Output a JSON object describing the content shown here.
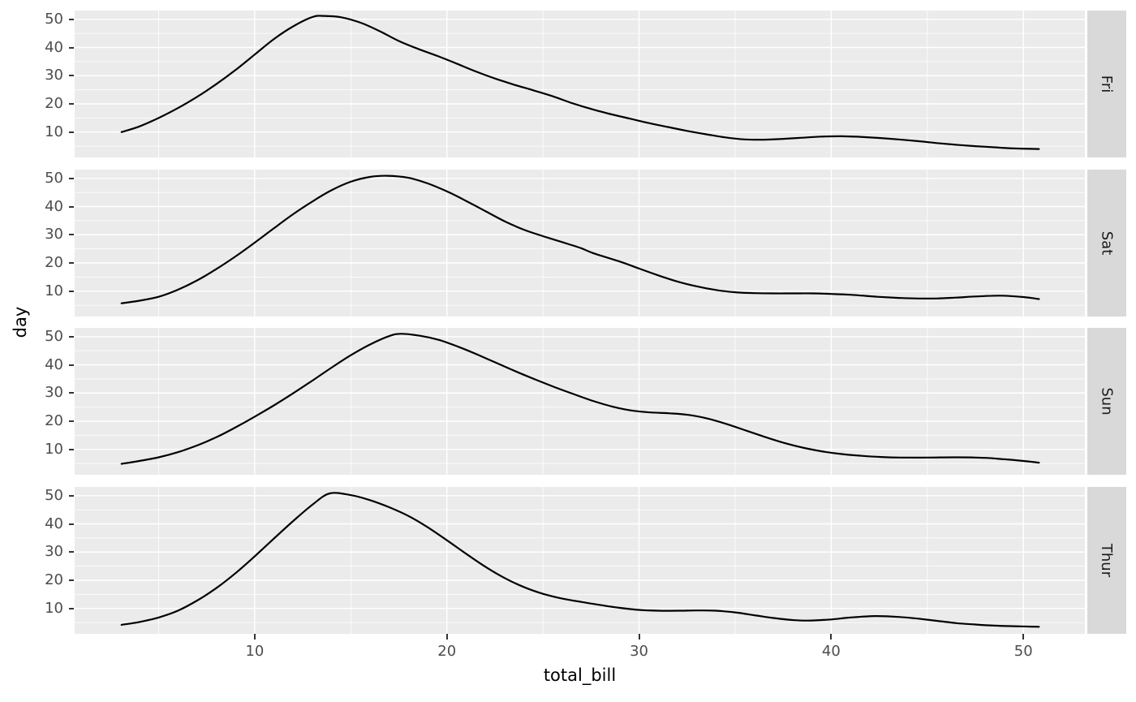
{
  "chart_data": {
    "type": "line",
    "subtype": "faceted-density",
    "title": "",
    "xlabel": "total_bill",
    "ylabel": "day",
    "facet_variable": "day",
    "facet_strip_side": "right",
    "grid": true,
    "legend": "none",
    "xlim": [
      0.63,
      53.2
    ],
    "ylim": [
      1.0,
      53.1
    ],
    "x_ticks": [
      10,
      20,
      30,
      40,
      50
    ],
    "y_ticks": [
      10,
      20,
      30,
      40,
      50
    ],
    "x_minor_ticks": [
      5,
      15,
      25,
      35,
      45
    ],
    "y_minor_ticks": [
      5,
      15,
      25,
      35,
      45
    ],
    "series": [
      {
        "name": "Fri",
        "points": [
          [
            3.07,
            10
          ],
          [
            4,
            12
          ],
          [
            5,
            15
          ],
          [
            6,
            18.5
          ],
          [
            7,
            22.5
          ],
          [
            8,
            27
          ],
          [
            9,
            32
          ],
          [
            10,
            37.5
          ],
          [
            11,
            43
          ],
          [
            12,
            47.5
          ],
          [
            13,
            50.8
          ],
          [
            13.6,
            51.2
          ],
          [
            14.5,
            50.7
          ],
          [
            15.5,
            48.8
          ],
          [
            16.5,
            45.8
          ],
          [
            17.5,
            42.3
          ],
          [
            18.5,
            39.5
          ],
          [
            19.5,
            37
          ],
          [
            20.5,
            34.3
          ],
          [
            21.5,
            31.5
          ],
          [
            22.5,
            29
          ],
          [
            23.5,
            26.8
          ],
          [
            24.5,
            24.8
          ],
          [
            25.5,
            22.7
          ],
          [
            26.5,
            20.3
          ],
          [
            27.5,
            18.2
          ],
          [
            28.5,
            16.4
          ],
          [
            29.5,
            14.8
          ],
          [
            30.5,
            13.2
          ],
          [
            31.5,
            11.8
          ],
          [
            32.5,
            10.4
          ],
          [
            33.5,
            9.2
          ],
          [
            34.5,
            8.1
          ],
          [
            35.5,
            7.4
          ],
          [
            36.5,
            7.3
          ],
          [
            37.5,
            7.6
          ],
          [
            38.5,
            8
          ],
          [
            39.5,
            8.4
          ],
          [
            40.5,
            8.5
          ],
          [
            41.5,
            8.3
          ],
          [
            42.5,
            7.9
          ],
          [
            43.5,
            7.4
          ],
          [
            44.5,
            6.8
          ],
          [
            45.5,
            6.1
          ],
          [
            46.5,
            5.5
          ],
          [
            47.5,
            5
          ],
          [
            48.5,
            4.6
          ],
          [
            49.5,
            4.2
          ],
          [
            50.81,
            4
          ]
        ]
      },
      {
        "name": "Sat",
        "points": [
          [
            3.07,
            5.7
          ],
          [
            4,
            6.6
          ],
          [
            5,
            8
          ],
          [
            6,
            10.5
          ],
          [
            7,
            13.8
          ],
          [
            8,
            17.8
          ],
          [
            9,
            22.3
          ],
          [
            10,
            27.2
          ],
          [
            11,
            32.3
          ],
          [
            12,
            37.3
          ],
          [
            13,
            41.8
          ],
          [
            14,
            45.8
          ],
          [
            15,
            48.8
          ],
          [
            16,
            50.5
          ],
          [
            16.9,
            50.9
          ],
          [
            18,
            50.2
          ],
          [
            19,
            48.2
          ],
          [
            20,
            45.4
          ],
          [
            21,
            42
          ],
          [
            22,
            38.4
          ],
          [
            23,
            34.8
          ],
          [
            24,
            31.8
          ],
          [
            25,
            29.5
          ],
          [
            26,
            27.4
          ],
          [
            27,
            25.2
          ],
          [
            27.6,
            23.5
          ],
          [
            29,
            20.5
          ],
          [
            30,
            18
          ],
          [
            31,
            15.6
          ],
          [
            32,
            13.4
          ],
          [
            33,
            11.7
          ],
          [
            34,
            10.4
          ],
          [
            35,
            9.6
          ],
          [
            36,
            9.3
          ],
          [
            37,
            9.2
          ],
          [
            38,
            9.2
          ],
          [
            39,
            9.2
          ],
          [
            40,
            9
          ],
          [
            41,
            8.7
          ],
          [
            42.4,
            8
          ],
          [
            43.5,
            7.6
          ],
          [
            44.5,
            7.4
          ],
          [
            45.5,
            7.4
          ],
          [
            46.5,
            7.7
          ],
          [
            47.5,
            8.1
          ],
          [
            48.8,
            8.4
          ],
          [
            50,
            7.9
          ],
          [
            50.81,
            7.2
          ]
        ]
      },
      {
        "name": "Sun",
        "points": [
          [
            3.07,
            4.9
          ],
          [
            4,
            5.9
          ],
          [
            5,
            7.2
          ],
          [
            6,
            9
          ],
          [
            7,
            11.4
          ],
          [
            8,
            14.3
          ],
          [
            9,
            17.8
          ],
          [
            10,
            21.6
          ],
          [
            11,
            25.6
          ],
          [
            12,
            29.9
          ],
          [
            13,
            34.4
          ],
          [
            14,
            39
          ],
          [
            15,
            43.4
          ],
          [
            16,
            47.2
          ],
          [
            17,
            50.2
          ],
          [
            17.6,
            51
          ],
          [
            18.6,
            50.3
          ],
          [
            19.6,
            48.8
          ],
          [
            20.6,
            46.4
          ],
          [
            21.6,
            43.6
          ],
          [
            22.6,
            40.6
          ],
          [
            23.6,
            37.6
          ],
          [
            24.6,
            34.8
          ],
          [
            25.6,
            32.1
          ],
          [
            26.6,
            29.6
          ],
          [
            27.6,
            27.2
          ],
          [
            28.6,
            25.2
          ],
          [
            29.6,
            23.8
          ],
          [
            30.6,
            23.1
          ],
          [
            31.6,
            22.8
          ],
          [
            32.6,
            22.2
          ],
          [
            33.6,
            20.9
          ],
          [
            34.6,
            18.9
          ],
          [
            35.6,
            16.6
          ],
          [
            36.6,
            14.3
          ],
          [
            37.6,
            12.2
          ],
          [
            38.6,
            10.5
          ],
          [
            39.6,
            9.2
          ],
          [
            40.6,
            8.3
          ],
          [
            41.6,
            7.7
          ],
          [
            42.6,
            7.3
          ],
          [
            43.6,
            7.1
          ],
          [
            45,
            7.1
          ],
          [
            46.5,
            7.2
          ],
          [
            48,
            7
          ],
          [
            49,
            6.5
          ],
          [
            50,
            5.9
          ],
          [
            50.81,
            5.3
          ]
        ]
      },
      {
        "name": "Thur",
        "points": [
          [
            3.07,
            4.2
          ],
          [
            4,
            5.2
          ],
          [
            5,
            6.8
          ],
          [
            6,
            9.2
          ],
          [
            7,
            12.8
          ],
          [
            8,
            17.2
          ],
          [
            9,
            22.5
          ],
          [
            10,
            28.5
          ],
          [
            11,
            34.8
          ],
          [
            12,
            41
          ],
          [
            13,
            46.8
          ],
          [
            13.9,
            50.8
          ],
          [
            15,
            50.2
          ],
          [
            16,
            48.4
          ],
          [
            17,
            45.9
          ],
          [
            18,
            42.8
          ],
          [
            19,
            38.8
          ],
          [
            20,
            34.2
          ],
          [
            21,
            29.4
          ],
          [
            22,
            24.8
          ],
          [
            23,
            20.8
          ],
          [
            24,
            17.6
          ],
          [
            25,
            15.2
          ],
          [
            26,
            13.5
          ],
          [
            27,
            12.3
          ],
          [
            28,
            11.2
          ],
          [
            29,
            10.2
          ],
          [
            30,
            9.5
          ],
          [
            31,
            9.2
          ],
          [
            32,
            9.2
          ],
          [
            33,
            9.3
          ],
          [
            34,
            9.2
          ],
          [
            35,
            8.6
          ],
          [
            36,
            7.6
          ],
          [
            37,
            6.6
          ],
          [
            38,
            5.9
          ],
          [
            38.8,
            5.7
          ],
          [
            40,
            6.1
          ],
          [
            41,
            6.8
          ],
          [
            42.3,
            7.3
          ],
          [
            43.5,
            7
          ],
          [
            44.5,
            6.4
          ],
          [
            45.5,
            5.6
          ],
          [
            46.5,
            4.8
          ],
          [
            47.5,
            4.3
          ],
          [
            48.5,
            3.9
          ],
          [
            49.5,
            3.7
          ],
          [
            50.81,
            3.5
          ]
        ]
      }
    ]
  },
  "style": {
    "panel_bg": "#EBEBEB",
    "strip_bg": "#D9D9D9",
    "grid_color": "#FFFFFF",
    "line_color": "#000000",
    "tick_label_color": "#4D4D4D",
    "strip_text_color": "#1A1A1A",
    "axis_title_color": "#000000",
    "tick_mark_color": "#333333"
  }
}
